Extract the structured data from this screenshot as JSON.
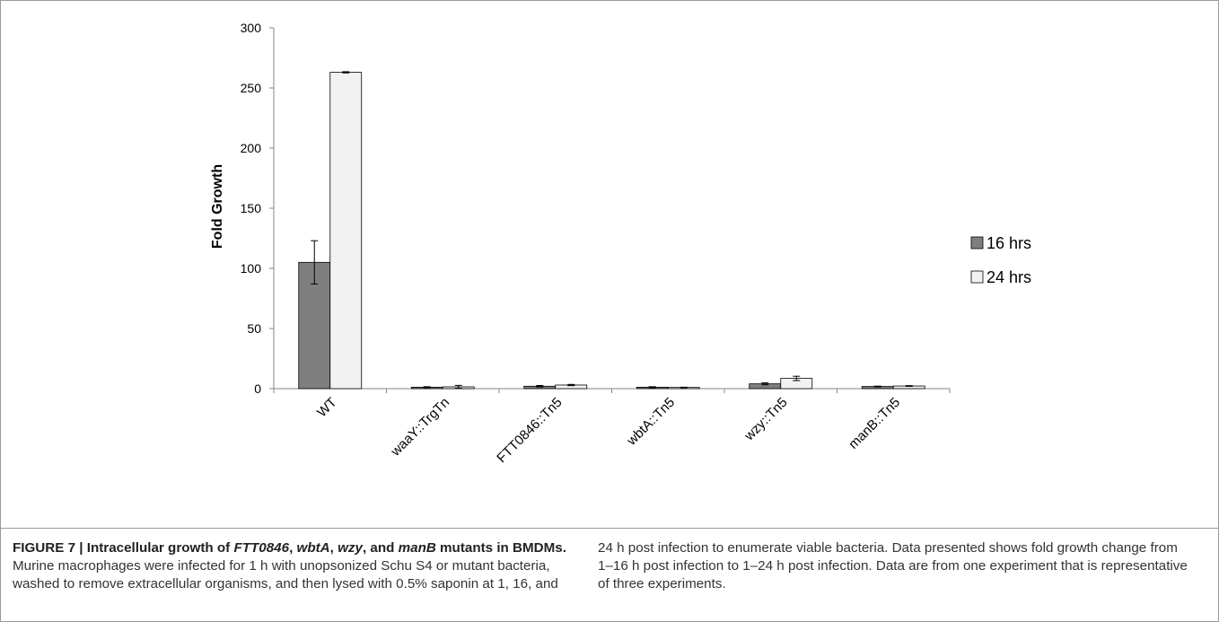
{
  "chart_data": {
    "type": "bar",
    "categories": [
      "WT",
      "waaY::TrgTn",
      "FTT0846::Tn5",
      "wbtA::Tn5",
      "wzy::Tn5",
      "manB::Tn5"
    ],
    "series": [
      {
        "name": "16 hrs",
        "color": "#7f7f7f",
        "values": [
          105,
          1.2,
          2,
          1.2,
          4,
          1.8
        ],
        "errors": [
          18,
          0.4,
          0.6,
          0.4,
          0.8,
          0.3
        ]
      },
      {
        "name": "24 hrs",
        "color": "#f2f2f2",
        "values": [
          263,
          1.5,
          3,
          1,
          8.5,
          2.2
        ],
        "errors": [
          0.5,
          1.2,
          0.5,
          0.2,
          1.8,
          0.3
        ]
      }
    ],
    "title": "",
    "xlabel": "",
    "ylabel": "Fold Growth",
    "ylim": [
      0,
      300
    ],
    "yticks": [
      0,
      50,
      100,
      150,
      200,
      250,
      300
    ],
    "grid": false,
    "legend": "right"
  },
  "caption": {
    "label": "FIGURE 7 | Intracellular growth of ",
    "g1": "FTT0846",
    "sep1": ", ",
    "g2": "wbtA",
    "sep2": ", ",
    "g3": "wzy",
    "sep3": ", and ",
    "g4": "manB",
    "tail": " mutants in BMDMs.",
    "body_left": " Murine macrophages were infected for 1 h with unopsonized Schu S4 or mutant bacteria, washed to remove extracellular organisms, and then lysed with 0.5% saponin at 1, 16, and",
    "body_right": "24 h post infection to enumerate viable bacteria. Data presented shows fold growth change from 1–16 h post infection to 1–24 h post infection. Data are from one experiment that is representative of three experiments."
  }
}
